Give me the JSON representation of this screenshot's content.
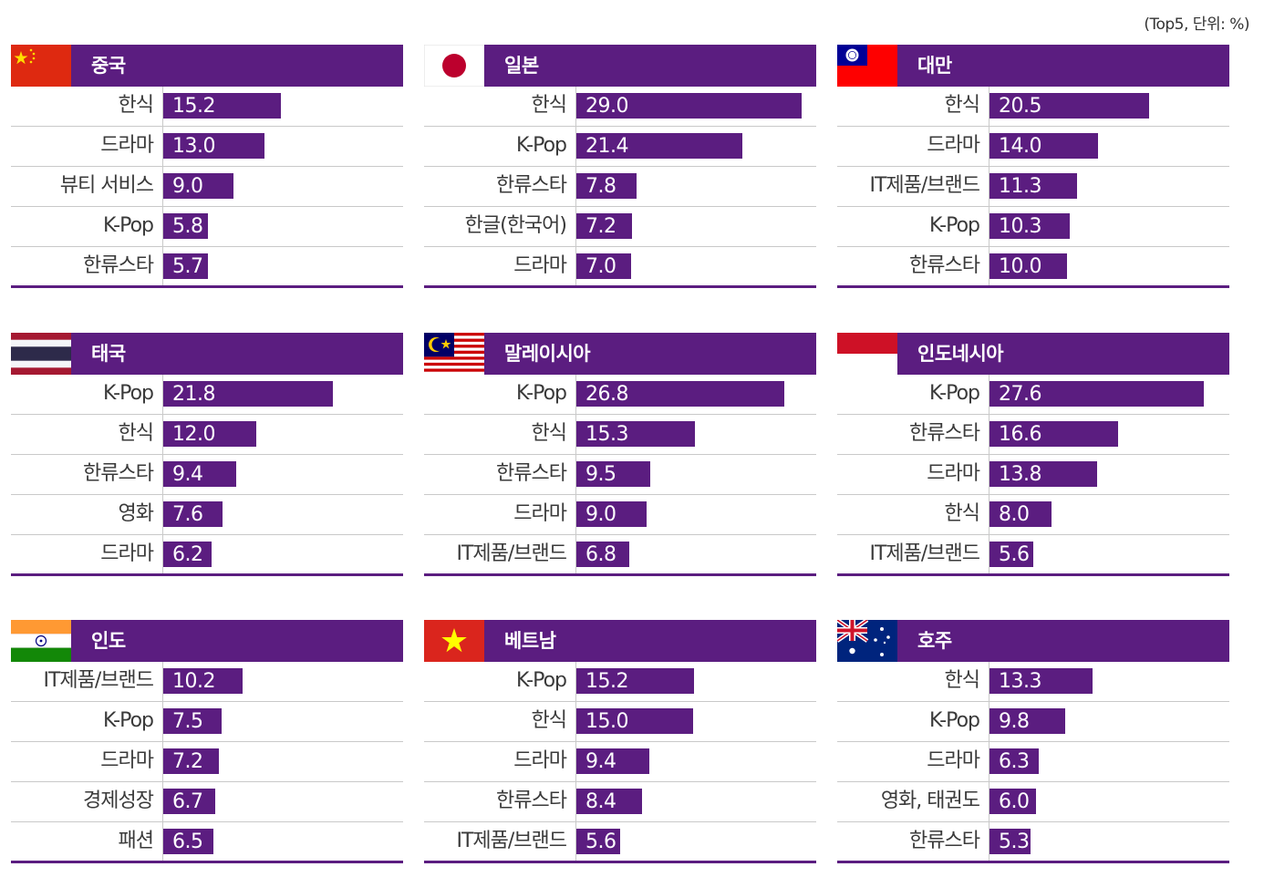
{
  "unit_note": "(Top5, 단위: %)",
  "chart_data": [
    {
      "type": "bar",
      "orientation": "horizontal",
      "title": "중국",
      "flag": "china-flag",
      "categories": [
        "한식",
        "드라마",
        "뷰티 서비스",
        "K-Pop",
        "한류스타"
      ],
      "values": [
        15.2,
        13.0,
        9.0,
        5.8,
        5.7
      ],
      "value_labels": [
        "15.2",
        "13.0",
        "9.0",
        "5.8",
        "5.7"
      ],
      "xlim": [
        0,
        31
      ]
    },
    {
      "type": "bar",
      "orientation": "horizontal",
      "title": "일본",
      "flag": "japan-flag",
      "categories": [
        "한식",
        "K-Pop",
        "한류스타",
        "한글(한국어)",
        "드라마"
      ],
      "values": [
        29.0,
        21.4,
        7.8,
        7.2,
        7.0
      ],
      "value_labels": [
        "29.0",
        "21.4",
        "7.8",
        "7.2",
        "7.0"
      ],
      "xlim": [
        0,
        31
      ]
    },
    {
      "type": "bar",
      "orientation": "horizontal",
      "title": "대만",
      "flag": "taiwan-flag",
      "categories": [
        "한식",
        "드라마",
        "IT제품/브랜드",
        "K-Pop",
        "한류스타"
      ],
      "values": [
        20.5,
        14.0,
        11.3,
        10.3,
        10.0
      ],
      "value_labels": [
        "20.5",
        "14.0",
        "11.3",
        "10.3",
        "10.0"
      ],
      "xlim": [
        0,
        31
      ]
    },
    {
      "type": "bar",
      "orientation": "horizontal",
      "title": "태국",
      "flag": "thailand-flag",
      "categories": [
        "K-Pop",
        "한식",
        "한류스타",
        "영화",
        "드라마"
      ],
      "values": [
        21.8,
        12.0,
        9.4,
        7.6,
        6.2
      ],
      "value_labels": [
        "21.8",
        "12.0",
        "9.4",
        "7.6",
        "6.2"
      ],
      "xlim": [
        0,
        31
      ]
    },
    {
      "type": "bar",
      "orientation": "horizontal",
      "title": "말레이시아",
      "flag": "malaysia-flag",
      "categories": [
        "K-Pop",
        "한식",
        "한류스타",
        "드라마",
        "IT제품/브랜드"
      ],
      "values": [
        26.8,
        15.3,
        9.5,
        9.0,
        6.8
      ],
      "value_labels": [
        "26.8",
        "15.3",
        "9.5",
        "9.0",
        "6.8"
      ],
      "xlim": [
        0,
        31
      ]
    },
    {
      "type": "bar",
      "orientation": "horizontal",
      "title": "인도네시아",
      "flag": "indonesia-flag",
      "categories": [
        "K-Pop",
        "한류스타",
        "드라마",
        "한식",
        "IT제품/브랜드"
      ],
      "values": [
        27.6,
        16.6,
        13.8,
        8.0,
        5.6
      ],
      "value_labels": [
        "27.6",
        "16.6",
        "13.8",
        "8.0",
        "5.6"
      ],
      "xlim": [
        0,
        31
      ]
    },
    {
      "type": "bar",
      "orientation": "horizontal",
      "title": "인도",
      "flag": "india-flag",
      "categories": [
        "IT제품/브랜드",
        "K-Pop",
        "드라마",
        "경제성장",
        "패션"
      ],
      "values": [
        10.2,
        7.5,
        7.2,
        6.7,
        6.5
      ],
      "value_labels": [
        "10.2",
        "7.5",
        "7.2",
        "6.7",
        "6.5"
      ],
      "xlim": [
        0,
        31
      ]
    },
    {
      "type": "bar",
      "orientation": "horizontal",
      "title": "베트남",
      "flag": "vietnam-flag",
      "categories": [
        "K-Pop",
        "한식",
        "드라마",
        "한류스타",
        "IT제품/브랜드"
      ],
      "values": [
        15.2,
        15.0,
        9.4,
        8.4,
        5.6
      ],
      "value_labels": [
        "15.2",
        "15.0",
        "9.4",
        "8.4",
        "5.6"
      ],
      "xlim": [
        0,
        31
      ]
    },
    {
      "type": "bar",
      "orientation": "horizontal",
      "title": "호주",
      "flag": "australia-flag",
      "categories": [
        "한식",
        "K-Pop",
        "드라마",
        "영화, 태권도",
        "한류스타"
      ],
      "values": [
        13.3,
        9.8,
        6.3,
        6.0,
        5.3
      ],
      "value_labels": [
        "13.3",
        "9.8",
        "6.3",
        "6.0",
        "5.3"
      ],
      "xlim": [
        0,
        31
      ]
    }
  ],
  "colors": {
    "bar": "#5b1d80",
    "header": "#5b1d80",
    "value_text": "#ffffff",
    "label_text": "#3a3a3a"
  }
}
